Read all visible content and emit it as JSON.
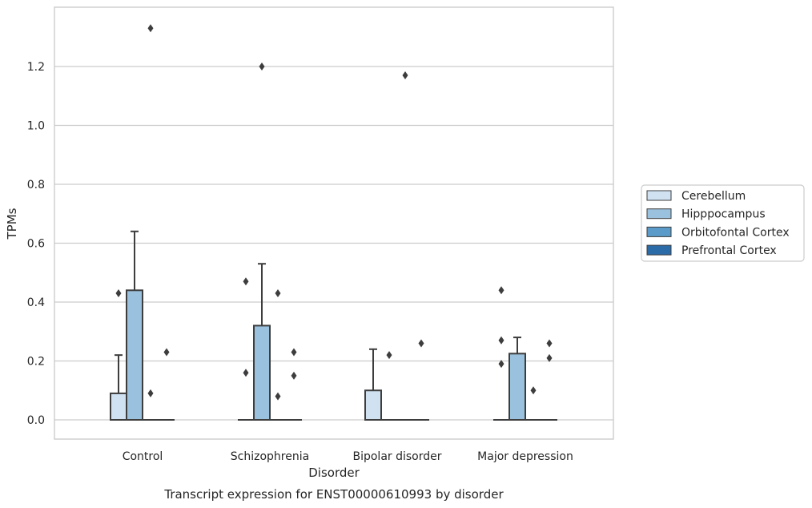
{
  "chart_data": {
    "type": "box",
    "title": "Transcript expression for ENST00000610993 by disorder",
    "xlabel": "Disorder",
    "ylabel": "TPMs",
    "ylim": [
      -0.065,
      1.4
    ],
    "yticks": [
      "0.0",
      "0.2",
      "0.4",
      "0.6",
      "0.8",
      "1.0",
      "1.2"
    ],
    "grid": true,
    "legend_position": "right",
    "categories": [
      "Control",
      "Schizophrenia",
      "Bipolar disorder",
      "Major depression"
    ],
    "series": [
      {
        "name": "Cerebellum",
        "color": "#d0e1f2",
        "boxes": [
          {
            "q1": 0.0,
            "median": 0.0,
            "q3": 0.09,
            "whisker_low": 0.0,
            "whisker_high": 0.22,
            "outliers": [
              0.43
            ]
          },
          {
            "q1": 0.0,
            "median": 0.0,
            "q3": 0.0,
            "whisker_low": 0.0,
            "whisker_high": 0.0,
            "outliers": [
              0.16,
              0.47
            ]
          },
          {
            "q1": 0.0,
            "median": 0.0,
            "q3": 0.1,
            "whisker_low": 0.0,
            "whisker_high": 0.24,
            "outliers": []
          },
          {
            "q1": 0.0,
            "median": 0.0,
            "q3": 0.0,
            "whisker_low": 0.0,
            "whisker_high": 0.0,
            "outliers": [
              0.19,
              0.27,
              0.44
            ]
          }
        ]
      },
      {
        "name": "Hipppocampus",
        "color": "#9ac1dd",
        "boxes": [
          {
            "q1": 0.0,
            "median": 0.0,
            "q3": 0.44,
            "whisker_low": 0.0,
            "whisker_high": 0.64,
            "outliers": []
          },
          {
            "q1": 0.0,
            "median": 0.0,
            "q3": 0.32,
            "whisker_low": 0.0,
            "whisker_high": 0.53,
            "outliers": [
              1.2
            ]
          },
          {
            "q1": 0.0,
            "median": 0.0,
            "q3": 0.0,
            "whisker_low": 0.0,
            "whisker_high": 0.0,
            "outliers": [
              0.22
            ]
          },
          {
            "q1": 0.0,
            "median": 0.0,
            "q3": 0.225,
            "whisker_low": 0.0,
            "whisker_high": 0.28,
            "outliers": []
          }
        ]
      },
      {
        "name": "Orbitofontal Cortex",
        "color": "#5a9bc9",
        "boxes": [
          {
            "q1": 0.0,
            "median": 0.0,
            "q3": 0.0,
            "whisker_low": 0.0,
            "whisker_high": 0.0,
            "outliers": [
              0.09,
              1.33
            ]
          },
          {
            "q1": 0.0,
            "median": 0.0,
            "q3": 0.0,
            "whisker_low": 0.0,
            "whisker_high": 0.0,
            "outliers": [
              0.08,
              0.43
            ]
          },
          {
            "q1": 0.0,
            "median": 0.0,
            "q3": 0.0,
            "whisker_low": 0.0,
            "whisker_high": 0.0,
            "outliers": [
              1.17
            ]
          },
          {
            "q1": 0.0,
            "median": 0.0,
            "q3": 0.0,
            "whisker_low": 0.0,
            "whisker_high": 0.0,
            "outliers": [
              0.1
            ]
          }
        ]
      },
      {
        "name": "Prefrontal Cortex",
        "color": "#2b6ba8",
        "boxes": [
          {
            "q1": 0.0,
            "median": 0.0,
            "q3": 0.0,
            "whisker_low": 0.0,
            "whisker_high": 0.0,
            "outliers": [
              0.23
            ]
          },
          {
            "q1": 0.0,
            "median": 0.0,
            "q3": 0.0,
            "whisker_low": 0.0,
            "whisker_high": 0.0,
            "outliers": [
              0.15,
              0.23
            ]
          },
          {
            "q1": 0.0,
            "median": 0.0,
            "q3": 0.0,
            "whisker_low": 0.0,
            "whisker_high": 0.0,
            "outliers": [
              0.26
            ]
          },
          {
            "q1": 0.0,
            "median": 0.0,
            "q3": 0.0,
            "whisker_low": 0.0,
            "whisker_high": 0.0,
            "outliers": [
              0.21,
              0.26
            ]
          }
        ]
      }
    ]
  }
}
